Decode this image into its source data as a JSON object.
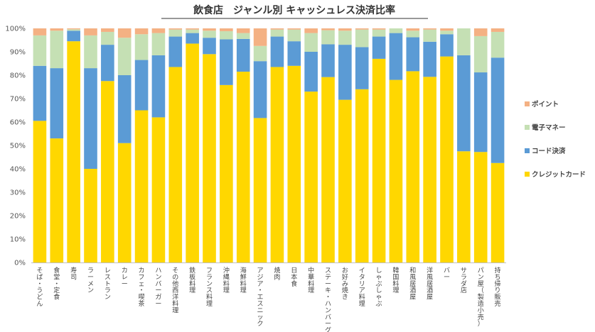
{
  "chart_data": {
    "type": "bar",
    "stacked": true,
    "percent": true,
    "title": "飲食店　ジャンル別 キャッシュレス決済比率",
    "xlabel": "",
    "ylabel": "",
    "ylim": [
      0,
      100
    ],
    "y_ticks": [
      "0%",
      "10%",
      "20%",
      "30%",
      "40%",
      "50%",
      "60%",
      "70%",
      "80%",
      "90%",
      "100%"
    ],
    "legend_position": "right",
    "grid": false,
    "categories": [
      "そば・うどん",
      "食堂・定食",
      "寿司",
      "ラーメン",
      "レストラン",
      "カレー",
      "カフェ・喫茶",
      "ハンバーガー",
      "その他西洋料理",
      "鉄板料理",
      "フランス料理",
      "沖縄料理",
      "海鮮料理",
      "アジア・エスニック",
      "焼肉",
      "日本食",
      "中華料理",
      "ステーキ・ハンバーグ",
      "お好み焼き",
      "イタリア料理",
      "しゃぶしゃぶ",
      "韓国料理",
      "和風居酒屋",
      "洋風居酒屋",
      "バー",
      "サラダ店",
      "パン屋（製造小売）",
      "持ち帰り販売"
    ],
    "series": [
      {
        "name": "クレジットカード",
        "color": "#ffd700",
        "values": [
          60.5,
          53,
          94.5,
          40,
          77.5,
          51,
          65,
          62,
          83.5,
          93.5,
          89,
          75.8,
          81.5,
          61.7,
          83.5,
          84,
          73,
          79.2,
          69.5,
          74,
          87,
          78,
          81.7,
          79.3,
          88,
          47.5,
          47.2,
          42.5
        ]
      },
      {
        "name": "コード決済",
        "color": "#5b9bd5",
        "values": [
          23.5,
          30,
          4.5,
          43,
          15.5,
          29,
          21.5,
          26.5,
          13,
          4.5,
          7,
          19.5,
          14,
          24.3,
          13,
          10.5,
          17,
          14,
          23.5,
          18,
          9.5,
          20,
          14.5,
          15,
          9.5,
          41,
          34,
          45
        ]
      },
      {
        "name": "電子マネー",
        "color": "#c5e0b4",
        "values": [
          13,
          16,
          0.6,
          14,
          5.5,
          16,
          11,
          9.5,
          3,
          1.5,
          3,
          3.5,
          2.5,
          6.5,
          3,
          5,
          8,
          6,
          6,
          7.5,
          3,
          2,
          2.8,
          5.2,
          1.5,
          11.5,
          15.5,
          11
        ]
      },
      {
        "name": "ポイント",
        "color": "#f4b183",
        "values": [
          3,
          1,
          0.4,
          3,
          1.5,
          4,
          2.5,
          2,
          0.5,
          0.5,
          1,
          1.2,
          2,
          7.5,
          0.5,
          0.5,
          2,
          0.8,
          1,
          0.5,
          0.5,
          0,
          1,
          0.5,
          1,
          0,
          3.3,
          1.5
        ]
      }
    ],
    "legend_order": [
      "ポイント",
      "電子マネー",
      "コード決済",
      "クレジットカード"
    ]
  }
}
